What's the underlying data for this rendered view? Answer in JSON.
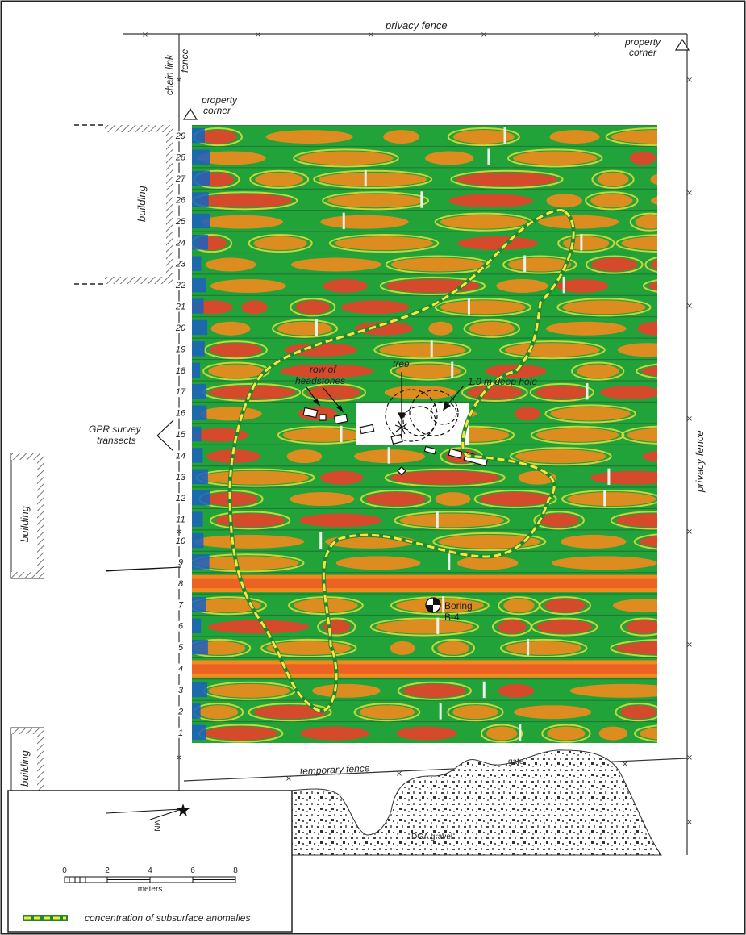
{
  "labels": {
    "privacy_fence_top": "privacy fence",
    "privacy_fence_right": "privacy fence",
    "chain_link": "chain link",
    "chain_link_fence": "fence",
    "property_corner_left_1": "property",
    "property_corner_left_2": "corner",
    "property_corner_right_1": "property",
    "property_corner_right_2": "corner",
    "building_top": "building",
    "building_middle": "building",
    "building_bottom": "building",
    "gpr_survey_1": "GPR survey",
    "gpr_survey_2": "transects",
    "row_of_1": "row of",
    "row_of_2": "headstones",
    "tree": "tree",
    "deep_hole": "1.0 m deep hole",
    "boring_1": "Boring",
    "boring_2": "B-4",
    "temporary_fence": "temporary fence",
    "gate": "gate",
    "dga_gravel": "DGA gravel"
  },
  "transects": [
    "1",
    "2",
    "3",
    "4",
    "5",
    "6",
    "7",
    "8",
    "9",
    "10",
    "11",
    "12",
    "13",
    "14",
    "15",
    "16",
    "17",
    "18",
    "19",
    "20",
    "21",
    "22",
    "23",
    "24",
    "25",
    "26",
    "27",
    "28",
    "29"
  ],
  "legend": {
    "north": "MN",
    "scale_ticks": [
      "0",
      "2",
      "4",
      "6",
      "8"
    ],
    "scale_unit": "meters",
    "anomaly_label": "concentration of subsurface anomalies"
  },
  "colors": {
    "gpr_green": "#22a33a",
    "gpr_orange": "#f28a1e",
    "gpr_red": "#e8402a",
    "gpr_yellow": "#f2e23a",
    "gpr_blue": "#1b5fbf",
    "anomaly_outline": "#ffe23a"
  }
}
